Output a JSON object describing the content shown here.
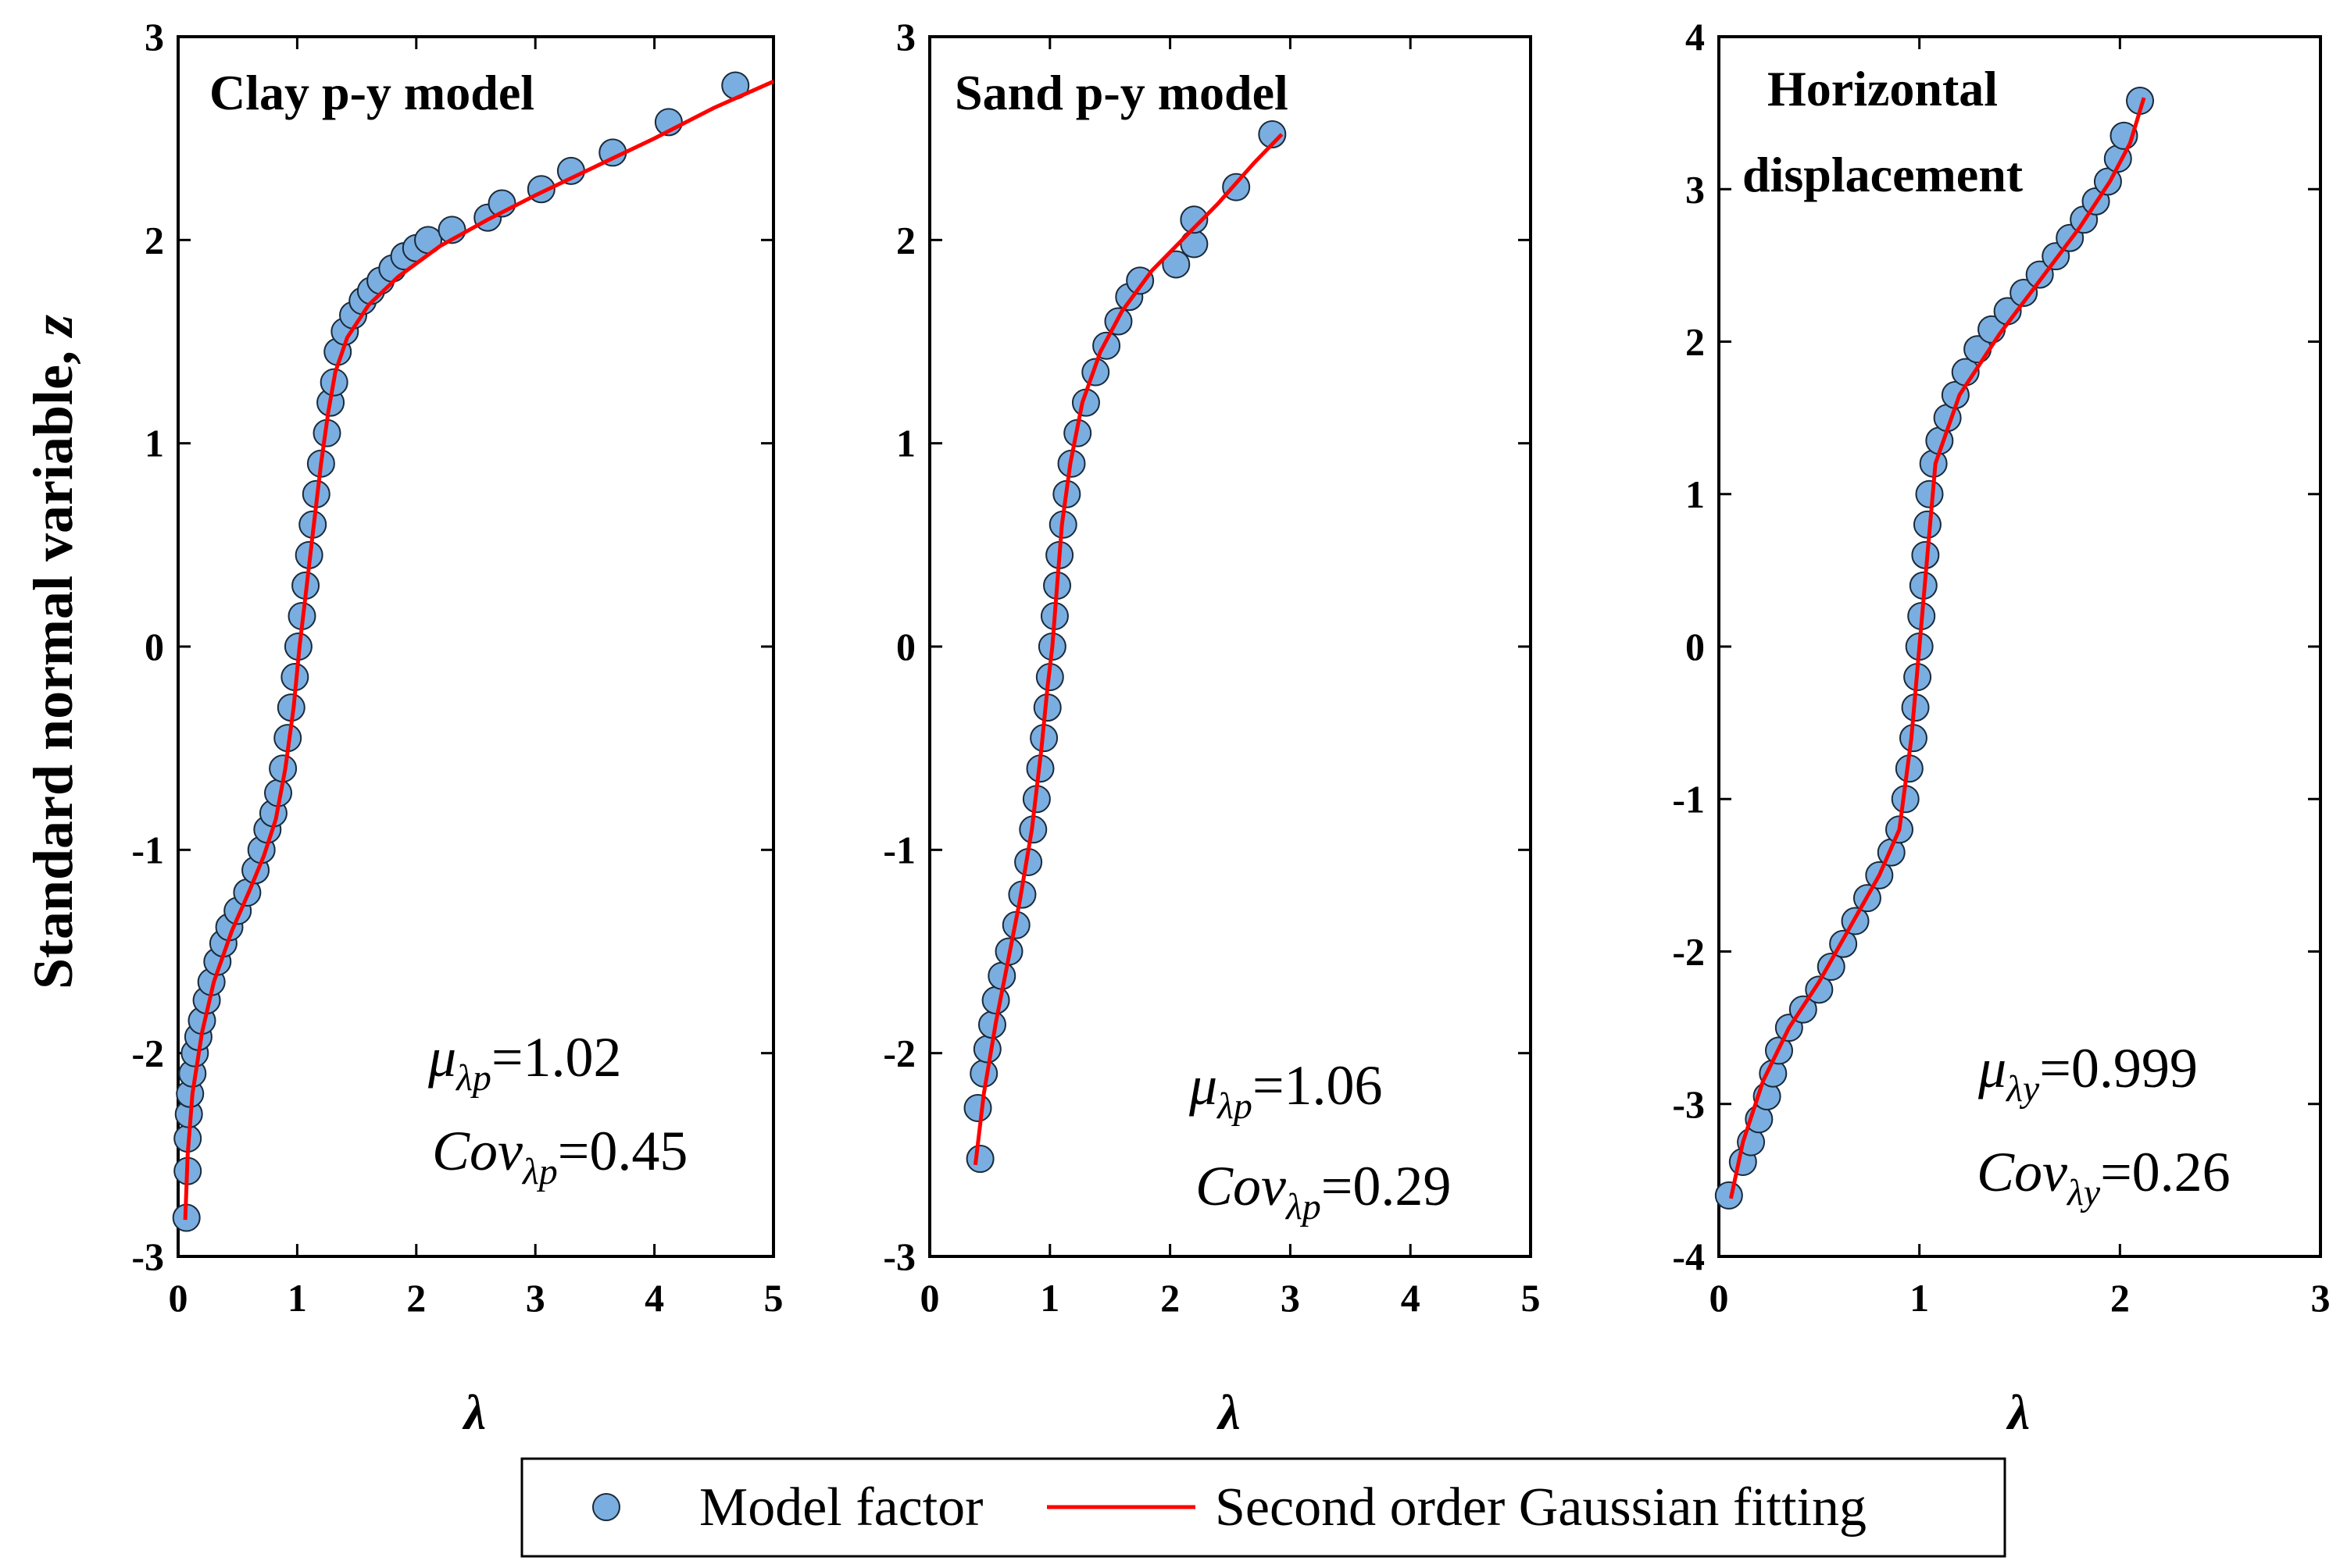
{
  "y_axis_label": "Standard normal variable, ",
  "y_axis_label_var": "z",
  "legend": {
    "items": [
      "Model factor",
      "Second order Gaussian fitting"
    ],
    "marker_color": "#7aaee0",
    "line_color": "#ff0000"
  },
  "chart_data": [
    {
      "type": "scatter",
      "title_lines": [
        "Clay p-y model"
      ],
      "xlabel": "λ",
      "ylabel": "Standard normal variable, z",
      "xlim": [
        0,
        5
      ],
      "ylim": [
        -3,
        3
      ],
      "xticks": [
        0,
        1,
        2,
        3,
        4,
        5
      ],
      "yticks": [
        -3,
        -2,
        -1,
        0,
        1,
        2,
        3
      ],
      "stats": {
        "mu_sub": "λp",
        "mu_val": "=1.02",
        "cov_sub": "λp",
        "cov_val": "=0.45"
      },
      "series": [
        {
          "name": "Model factor",
          "points": [
            [
              0.07,
              -2.81
            ],
            [
              0.08,
              -2.58
            ],
            [
              0.08,
              -2.42
            ],
            [
              0.09,
              -2.3
            ],
            [
              0.1,
              -2.2
            ],
            [
              0.12,
              -2.1
            ],
            [
              0.14,
              -2.0
            ],
            [
              0.17,
              -1.92
            ],
            [
              0.2,
              -1.84
            ],
            [
              0.24,
              -1.74
            ],
            [
              0.28,
              -1.65
            ],
            [
              0.33,
              -1.55
            ],
            [
              0.38,
              -1.46
            ],
            [
              0.43,
              -1.38
            ],
            [
              0.5,
              -1.3
            ],
            [
              0.58,
              -1.21
            ],
            [
              0.65,
              -1.1
            ],
            [
              0.7,
              -1.0
            ],
            [
              0.75,
              -0.9
            ],
            [
              0.8,
              -0.82
            ],
            [
              0.84,
              -0.72
            ],
            [
              0.88,
              -0.6
            ],
            [
              0.92,
              -0.45
            ],
            [
              0.95,
              -0.3
            ],
            [
              0.98,
              -0.15
            ],
            [
              1.01,
              0.0
            ],
            [
              1.04,
              0.15
            ],
            [
              1.07,
              0.3
            ],
            [
              1.1,
              0.45
            ],
            [
              1.13,
              0.6
            ],
            [
              1.16,
              0.75
            ],
            [
              1.2,
              0.9
            ],
            [
              1.25,
              1.05
            ],
            [
              1.28,
              1.2
            ],
            [
              1.31,
              1.3
            ],
            [
              1.34,
              1.45
            ],
            [
              1.4,
              1.55
            ],
            [
              1.47,
              1.63
            ],
            [
              1.55,
              1.7
            ],
            [
              1.62,
              1.75
            ],
            [
              1.7,
              1.8
            ],
            [
              1.8,
              1.86
            ],
            [
              1.9,
              1.92
            ],
            [
              2.0,
              1.96
            ],
            [
              2.1,
              2.0
            ],
            [
              2.3,
              2.05
            ],
            [
              2.6,
              2.11
            ],
            [
              2.72,
              2.18
            ],
            [
              3.05,
              2.25
            ],
            [
              3.3,
              2.34
            ],
            [
              3.65,
              2.43
            ],
            [
              4.12,
              2.58
            ],
            [
              4.68,
              2.76
            ]
          ]
        },
        {
          "name": "Second order Gaussian fitting",
          "points": [
            [
              0.06,
              -2.82
            ],
            [
              0.08,
              -2.5
            ],
            [
              0.12,
              -2.2
            ],
            [
              0.2,
              -1.9
            ],
            [
              0.3,
              -1.65
            ],
            [
              0.45,
              -1.4
            ],
            [
              0.6,
              -1.2
            ],
            [
              0.72,
              -1.03
            ],
            [
              0.82,
              -0.85
            ],
            [
              0.9,
              -0.6
            ],
            [
              0.97,
              -0.3
            ],
            [
              1.02,
              0.0
            ],
            [
              1.08,
              0.3
            ],
            [
              1.14,
              0.6
            ],
            [
              1.2,
              0.9
            ],
            [
              1.26,
              1.15
            ],
            [
              1.32,
              1.35
            ],
            [
              1.42,
              1.52
            ],
            [
              1.6,
              1.68
            ],
            [
              1.85,
              1.82
            ],
            [
              2.2,
              1.97
            ],
            [
              2.6,
              2.1
            ],
            [
              3.0,
              2.22
            ],
            [
              3.5,
              2.36
            ],
            [
              4.0,
              2.5
            ],
            [
              4.5,
              2.65
            ],
            [
              5.0,
              2.78
            ]
          ]
        }
      ]
    },
    {
      "type": "scatter",
      "title_lines": [
        "Sand p-y model"
      ],
      "xlabel": "λ",
      "ylabel": "",
      "xlim": [
        0,
        5
      ],
      "ylim": [
        -3,
        3
      ],
      "xticks": [
        0,
        1,
        2,
        3,
        4,
        5
      ],
      "yticks": [
        -3,
        -2,
        -1,
        0,
        1,
        2,
        3
      ],
      "stats": {
        "mu_sub": "λp",
        "mu_val": "=1.06",
        "cov_sub": "λp",
        "cov_val": "=0.29"
      },
      "series": [
        {
          "name": "Model factor",
          "points": [
            [
              0.42,
              -2.52
            ],
            [
              0.4,
              -2.27
            ],
            [
              0.45,
              -2.1
            ],
            [
              0.48,
              -1.98
            ],
            [
              0.52,
              -1.86
            ],
            [
              0.55,
              -1.74
            ],
            [
              0.6,
              -1.62
            ],
            [
              0.66,
              -1.5
            ],
            [
              0.72,
              -1.37
            ],
            [
              0.77,
              -1.22
            ],
            [
              0.82,
              -1.06
            ],
            [
              0.86,
              -0.9
            ],
            [
              0.89,
              -0.75
            ],
            [
              0.92,
              -0.6
            ],
            [
              0.95,
              -0.45
            ],
            [
              0.98,
              -0.3
            ],
            [
              1.0,
              -0.15
            ],
            [
              1.02,
              0.0
            ],
            [
              1.04,
              0.15
            ],
            [
              1.06,
              0.3
            ],
            [
              1.08,
              0.45
            ],
            [
              1.11,
              0.6
            ],
            [
              1.14,
              0.75
            ],
            [
              1.18,
              0.9
            ],
            [
              1.23,
              1.05
            ],
            [
              1.3,
              1.2
            ],
            [
              1.38,
              1.35
            ],
            [
              1.47,
              1.48
            ],
            [
              1.57,
              1.6
            ],
            [
              1.66,
              1.72
            ],
            [
              1.75,
              1.8
            ],
            [
              2.05,
              1.88
            ],
            [
              2.2,
              1.98
            ],
            [
              2.2,
              2.1
            ],
            [
              2.55,
              2.26
            ],
            [
              2.85,
              2.52
            ]
          ]
        },
        {
          "name": "Second order Gaussian fitting",
          "points": [
            [
              0.38,
              -2.55
            ],
            [
              0.45,
              -2.2
            ],
            [
              0.55,
              -1.85
            ],
            [
              0.65,
              -1.55
            ],
            [
              0.75,
              -1.25
            ],
            [
              0.85,
              -0.9
            ],
            [
              0.93,
              -0.5
            ],
            [
              0.98,
              -0.2
            ],
            [
              1.02,
              0.0
            ],
            [
              1.06,
              0.3
            ],
            [
              1.1,
              0.6
            ],
            [
              1.17,
              0.9
            ],
            [
              1.27,
              1.2
            ],
            [
              1.42,
              1.45
            ],
            [
              1.6,
              1.65
            ],
            [
              1.85,
              1.85
            ],
            [
              2.1,
              2.0
            ],
            [
              2.4,
              2.18
            ],
            [
              2.7,
              2.38
            ],
            [
              2.93,
              2.52
            ]
          ]
        }
      ]
    },
    {
      "type": "scatter",
      "title_lines": [
        "Horizontal",
        "displacement"
      ],
      "xlabel": "λ",
      "ylabel": "",
      "xlim": [
        0,
        3
      ],
      "ylim": [
        -4,
        4
      ],
      "xticks": [
        0,
        1,
        2,
        3
      ],
      "yticks": [
        -4,
        -3,
        -2,
        -1,
        0,
        1,
        2,
        3,
        4
      ],
      "stats": {
        "mu_sub": "λy",
        "mu_val": "=0.999",
        "cov_sub": "λy",
        "cov_val": "=0.26"
      },
      "series": [
        {
          "name": "Model factor",
          "points": [
            [
              0.05,
              -3.6
            ],
            [
              0.12,
              -3.38
            ],
            [
              0.16,
              -3.25
            ],
            [
              0.2,
              -3.1
            ],
            [
              0.24,
              -2.95
            ],
            [
              0.27,
              -2.8
            ],
            [
              0.3,
              -2.65
            ],
            [
              0.35,
              -2.5
            ],
            [
              0.42,
              -2.38
            ],
            [
              0.5,
              -2.25
            ],
            [
              0.56,
              -2.1
            ],
            [
              0.62,
              -1.95
            ],
            [
              0.68,
              -1.8
            ],
            [
              0.74,
              -1.65
            ],
            [
              0.8,
              -1.5
            ],
            [
              0.86,
              -1.35
            ],
            [
              0.9,
              -1.2
            ],
            [
              0.93,
              -1.0
            ],
            [
              0.95,
              -0.8
            ],
            [
              0.97,
              -0.6
            ],
            [
              0.98,
              -0.4
            ],
            [
              0.99,
              -0.2
            ],
            [
              1.0,
              0.0
            ],
            [
              1.01,
              0.2
            ],
            [
              1.02,
              0.4
            ],
            [
              1.03,
              0.6
            ],
            [
              1.04,
              0.8
            ],
            [
              1.05,
              1.0
            ],
            [
              1.07,
              1.2
            ],
            [
              1.1,
              1.35
            ],
            [
              1.14,
              1.5
            ],
            [
              1.18,
              1.65
            ],
            [
              1.23,
              1.8
            ],
            [
              1.29,
              1.95
            ],
            [
              1.36,
              2.08
            ],
            [
              1.44,
              2.2
            ],
            [
              1.52,
              2.32
            ],
            [
              1.6,
              2.44
            ],
            [
              1.68,
              2.56
            ],
            [
              1.75,
              2.68
            ],
            [
              1.82,
              2.8
            ],
            [
              1.88,
              2.92
            ],
            [
              1.94,
              3.05
            ],
            [
              1.99,
              3.2
            ],
            [
              2.02,
              3.35
            ],
            [
              2.1,
              3.58
            ]
          ]
        },
        {
          "name": "Second order Gaussian fitting",
          "points": [
            [
              0.06,
              -3.62
            ],
            [
              0.12,
              -3.25
            ],
            [
              0.22,
              -2.85
            ],
            [
              0.35,
              -2.5
            ],
            [
              0.5,
              -2.2
            ],
            [
              0.65,
              -1.85
            ],
            [
              0.8,
              -1.5
            ],
            [
              0.9,
              -1.2
            ],
            [
              0.96,
              -0.6
            ],
            [
              1.0,
              0.0
            ],
            [
              1.04,
              0.6
            ],
            [
              1.08,
              1.2
            ],
            [
              1.2,
              1.65
            ],
            [
              1.4,
              2.05
            ],
            [
              1.6,
              2.4
            ],
            [
              1.8,
              2.75
            ],
            [
              1.95,
              3.05
            ],
            [
              2.05,
              3.3
            ],
            [
              2.12,
              3.6
            ]
          ]
        }
      ]
    }
  ]
}
